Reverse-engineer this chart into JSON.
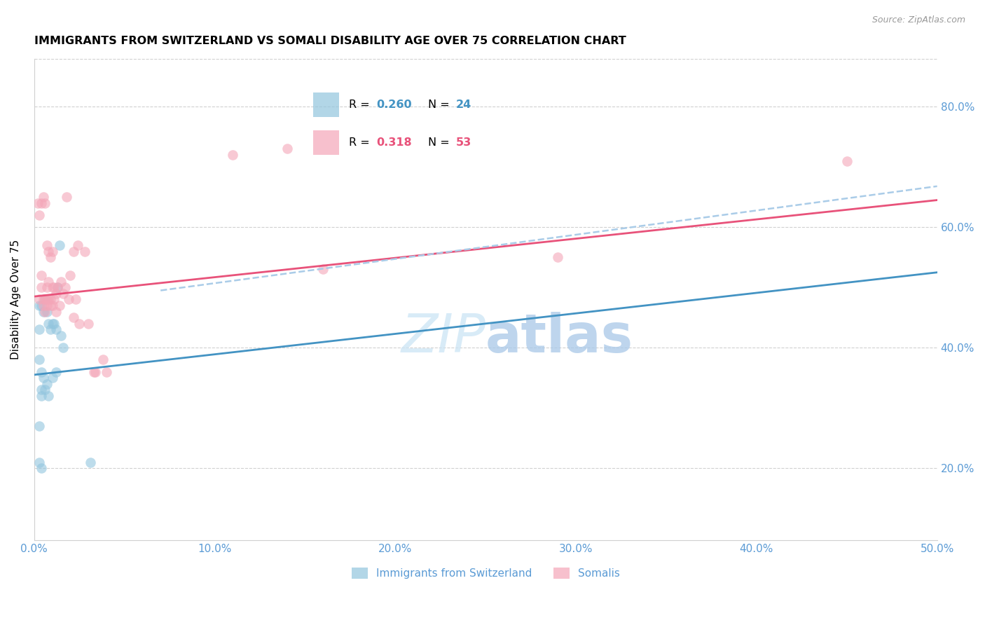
{
  "title": "IMMIGRANTS FROM SWITZERLAND VS SOMALI DISABILITY AGE OVER 75 CORRELATION CHART",
  "source": "Source: ZipAtlas.com",
  "ylabel": "Disability Age Over 75",
  "xmin": 0.0,
  "xmax": 0.5,
  "ymin": 0.08,
  "ymax": 0.88,
  "blue_color": "#92c5de",
  "pink_color": "#f4a6b8",
  "blue_line_color": "#4393c3",
  "pink_line_color": "#e8527a",
  "dashed_color": "#aacce8",
  "blue_scatter": [
    [
      0.003,
      0.47
    ],
    [
      0.004,
      0.47
    ],
    [
      0.005,
      0.46
    ],
    [
      0.006,
      0.48
    ],
    [
      0.007,
      0.46
    ],
    [
      0.008,
      0.44
    ],
    [
      0.009,
      0.43
    ],
    [
      0.01,
      0.44
    ],
    [
      0.011,
      0.44
    ],
    [
      0.012,
      0.43
    ],
    [
      0.013,
      0.5
    ],
    [
      0.014,
      0.57
    ],
    [
      0.015,
      0.42
    ],
    [
      0.016,
      0.4
    ],
    [
      0.003,
      0.38
    ],
    [
      0.004,
      0.36
    ],
    [
      0.005,
      0.35
    ],
    [
      0.006,
      0.33
    ],
    [
      0.007,
      0.34
    ],
    [
      0.008,
      0.32
    ],
    [
      0.01,
      0.35
    ],
    [
      0.012,
      0.36
    ],
    [
      0.003,
      0.27
    ],
    [
      0.004,
      0.32
    ],
    [
      0.003,
      0.21
    ],
    [
      0.004,
      0.2
    ],
    [
      0.004,
      0.33
    ],
    [
      0.003,
      0.43
    ],
    [
      0.031,
      0.21
    ]
  ],
  "pink_scatter": [
    [
      0.002,
      0.64
    ],
    [
      0.003,
      0.62
    ],
    [
      0.003,
      0.48
    ],
    [
      0.004,
      0.64
    ],
    [
      0.004,
      0.52
    ],
    [
      0.004,
      0.5
    ],
    [
      0.005,
      0.65
    ],
    [
      0.005,
      0.48
    ],
    [
      0.005,
      0.47
    ],
    [
      0.006,
      0.64
    ],
    [
      0.006,
      0.48
    ],
    [
      0.006,
      0.46
    ],
    [
      0.007,
      0.57
    ],
    [
      0.007,
      0.5
    ],
    [
      0.007,
      0.48
    ],
    [
      0.007,
      0.47
    ],
    [
      0.008,
      0.56
    ],
    [
      0.008,
      0.51
    ],
    [
      0.008,
      0.48
    ],
    [
      0.009,
      0.55
    ],
    [
      0.009,
      0.48
    ],
    [
      0.009,
      0.47
    ],
    [
      0.01,
      0.56
    ],
    [
      0.01,
      0.5
    ],
    [
      0.01,
      0.47
    ],
    [
      0.011,
      0.5
    ],
    [
      0.011,
      0.48
    ],
    [
      0.012,
      0.49
    ],
    [
      0.012,
      0.46
    ],
    [
      0.013,
      0.5
    ],
    [
      0.014,
      0.47
    ],
    [
      0.015,
      0.51
    ],
    [
      0.016,
      0.49
    ],
    [
      0.017,
      0.5
    ],
    [
      0.018,
      0.65
    ],
    [
      0.019,
      0.48
    ],
    [
      0.02,
      0.52
    ],
    [
      0.022,
      0.56
    ],
    [
      0.022,
      0.45
    ],
    [
      0.023,
      0.48
    ],
    [
      0.024,
      0.57
    ],
    [
      0.025,
      0.44
    ],
    [
      0.028,
      0.56
    ],
    [
      0.03,
      0.44
    ],
    [
      0.033,
      0.36
    ],
    [
      0.034,
      0.36
    ],
    [
      0.038,
      0.38
    ],
    [
      0.04,
      0.36
    ],
    [
      0.11,
      0.72
    ],
    [
      0.14,
      0.73
    ],
    [
      0.16,
      0.53
    ],
    [
      0.29,
      0.55
    ],
    [
      0.45,
      0.71
    ]
  ],
  "blue_line_x": [
    0.0,
    0.5
  ],
  "blue_line_y": [
    0.355,
    0.525
  ],
  "pink_line_x": [
    0.0,
    0.5
  ],
  "pink_line_y": [
    0.485,
    0.645
  ],
  "dashed_line_x": [
    0.07,
    0.5
  ],
  "dashed_line_y": [
    0.495,
    0.668
  ]
}
